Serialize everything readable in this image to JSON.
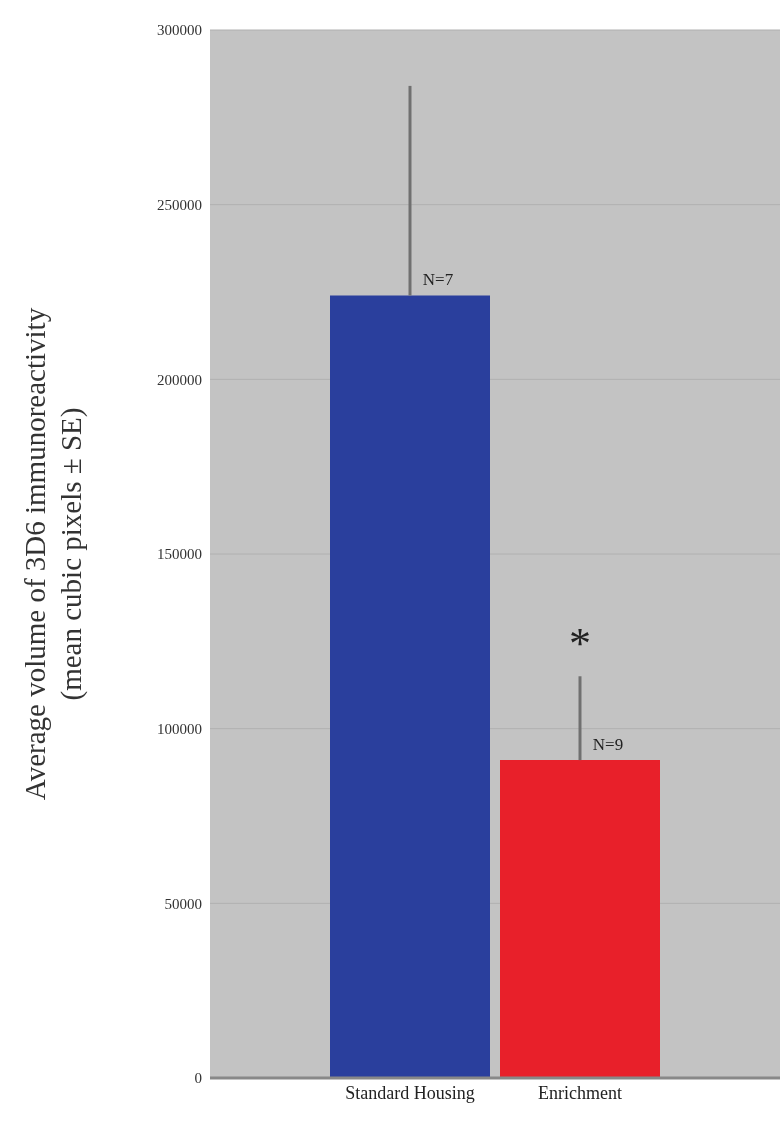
{
  "chart_data": {
    "type": "bar",
    "ylabel": "Average volume of 3D6 immunoreactivity\n(mean cubic pixels ± SE)",
    "categories": [
      "Standard Housing",
      "Enrichment"
    ],
    "values": [
      224000,
      91000
    ],
    "colors": [
      "#2a3f9d",
      "#e8202a"
    ],
    "errors": [
      [
        224000,
        284000
      ],
      [
        91000,
        115000
      ]
    ],
    "ylim": [
      0,
      300000
    ],
    "yticks": [
      0,
      50000,
      100000,
      150000,
      200000,
      250000,
      300000
    ],
    "grid": "y",
    "annotations": [
      {
        "text": "N=7",
        "x": "Standard Housing",
        "y": 224000
      },
      {
        "text": "N=9",
        "x": "Enrichment",
        "y": 91000
      },
      {
        "text": "*",
        "x": "Enrichment",
        "y": 115000
      }
    ]
  }
}
